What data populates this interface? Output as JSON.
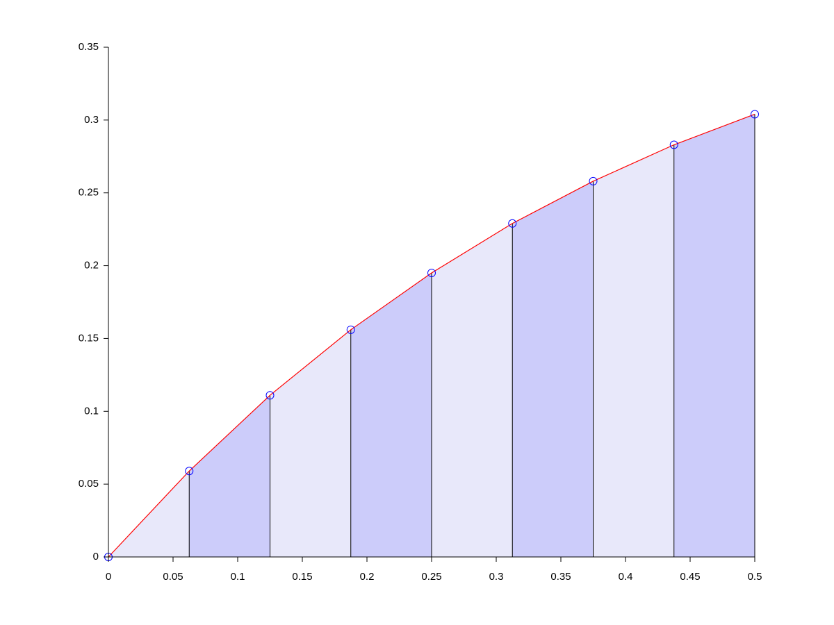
{
  "chart_data": {
    "type": "trapezoid",
    "x": [
      0,
      0.0625,
      0.125,
      0.1875,
      0.25,
      0.3125,
      0.375,
      0.4375,
      0.5
    ],
    "values": [
      0,
      0.059,
      0.111,
      0.156,
      0.195,
      0.229,
      0.258,
      0.283,
      0.304
    ],
    "color": "#ff0000",
    "marker_color": "#0000ff",
    "fill_colors": [
      "#e8e8fa",
      "#ccccfa"
    ],
    "xlim": [
      0,
      0.5
    ],
    "xticks": [
      0,
      0.05,
      0.1,
      0.15,
      0.2,
      0.25,
      0.3,
      0.35,
      0.4,
      0.45,
      0.5
    ],
    "ylim": [
      0,
      0.35
    ],
    "yticks": [
      0,
      0.05,
      0.1,
      0.15,
      0.2,
      0.25,
      0.3,
      0.35
    ],
    "grid": false
  }
}
